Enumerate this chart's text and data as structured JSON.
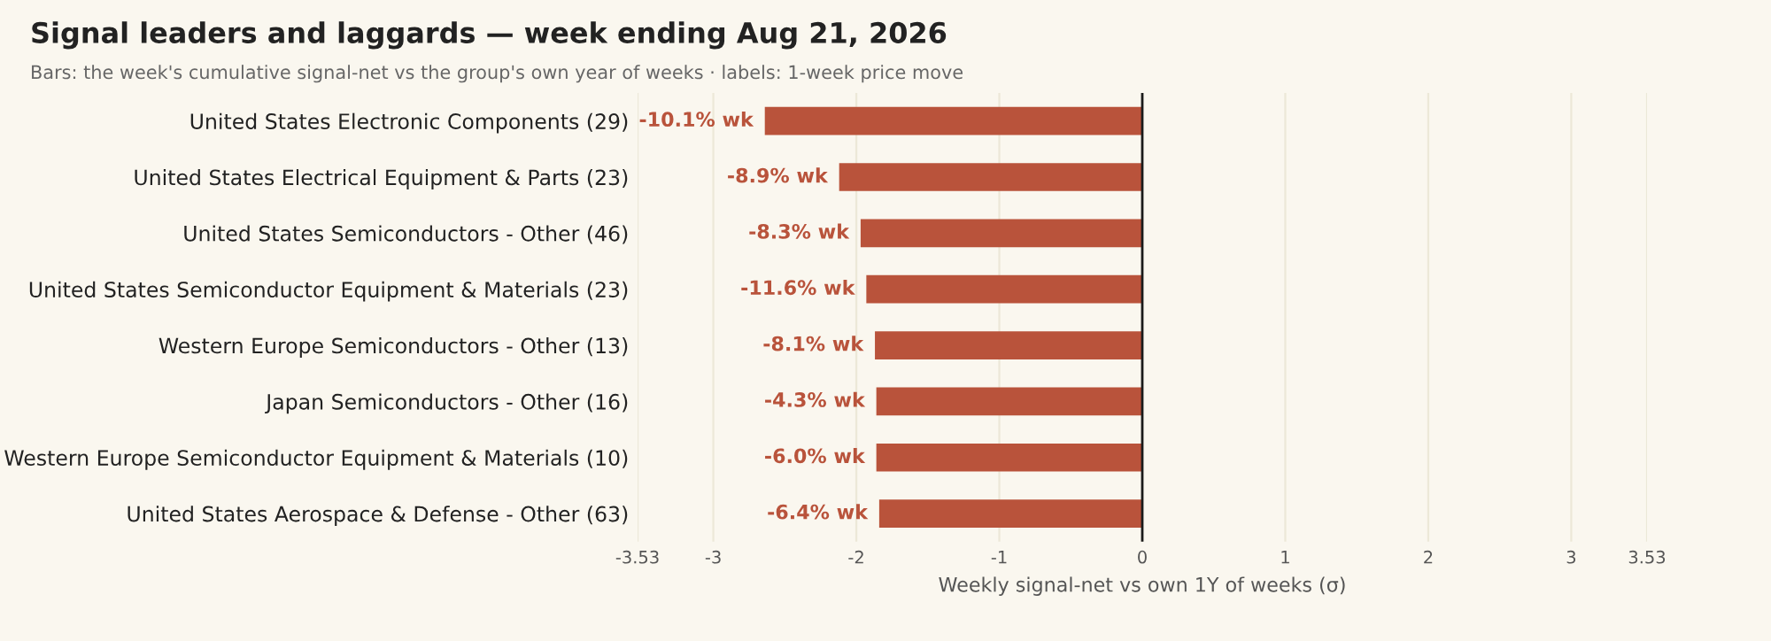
{
  "chart_data": {
    "type": "bar",
    "orientation": "horizontal",
    "title": "Signal leaders and laggards — week ending Aug 21, 2026",
    "subtitle": "Bars: the week's cumulative signal-net vs the group's own year of weeks · labels: 1-week price move",
    "xlabel": "Weekly signal-net vs own 1Y of weeks (σ)",
    "categories": [
      "United States Electronic Components (29)",
      "United States Electrical Equipment & Parts (23)",
      "United States Semiconductors - Other (46)",
      "United States Semiconductor Equipment & Materials (23)",
      "Western Europe Semiconductors - Other (13)",
      "Japan Semiconductors - Other (16)",
      "Western Europe Semiconductor Equipment & Materials (10)",
      "United States Aerospace & Defense - Other (63)"
    ],
    "values": [
      -2.64,
      -2.12,
      -1.97,
      -1.93,
      -1.87,
      -1.86,
      -1.86,
      -1.84
    ],
    "annotations": [
      {
        "text": "-10.1% wk",
        "x": -2.64,
        "y": "United States Electronic Components (29)"
      },
      {
        "text": "-8.9% wk",
        "x": -2.12,
        "y": "United States Electrical Equipment & Parts (23)"
      },
      {
        "text": "-8.3% wk",
        "x": -1.97,
        "y": "United States Semiconductors - Other (46)"
      },
      {
        "text": "-11.6% wk",
        "x": -1.93,
        "y": "United States Semiconductor Equipment & Materials (23)"
      },
      {
        "text": "-8.1% wk",
        "x": -1.87,
        "y": "Western Europe Semiconductors - Other (13)"
      },
      {
        "text": "-4.3% wk",
        "x": -1.86,
        "y": "Japan Semiconductors - Other (16)"
      },
      {
        "text": "-6.0% wk",
        "x": -1.86,
        "y": "Western Europe Semiconductor Equipment & Materials (10)"
      },
      {
        "text": "-6.4% wk",
        "x": -1.84,
        "y": "United States Aerospace & Defense - Other (63)"
      }
    ],
    "color": "#b9533b",
    "xlim": [
      -3.53,
      3.53
    ],
    "xticks": [
      -3.53,
      -3,
      -2,
      -1,
      0,
      1,
      2,
      3,
      3.53
    ],
    "ref_lines": [
      {
        "axis": "x",
        "value": 0,
        "color": "#1a1a1a"
      }
    ],
    "grid": "x"
  }
}
